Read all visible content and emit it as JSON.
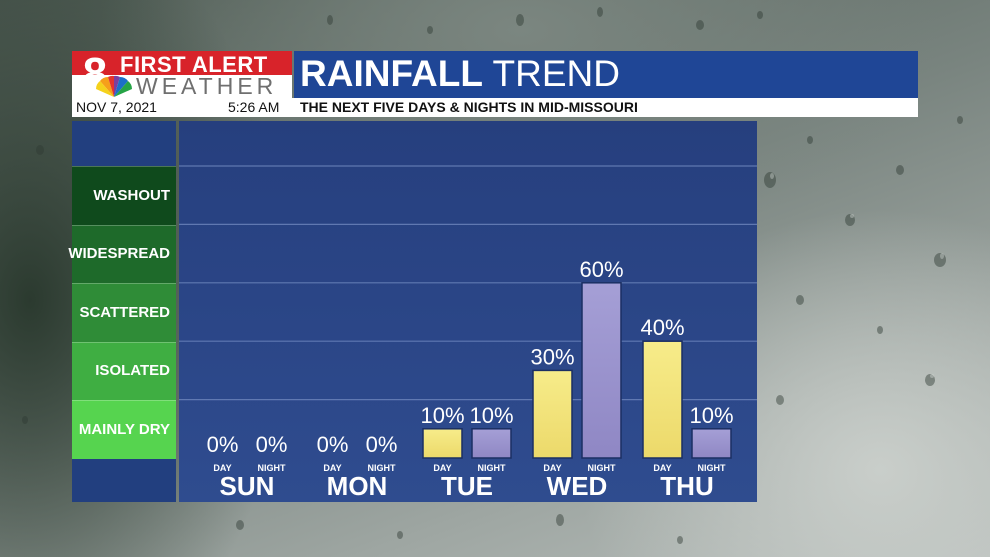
{
  "header": {
    "logo_number": "8",
    "logo_top": "FIRST ALERT",
    "logo_bottom": "WEATHER",
    "title_bold": "RAINFALL",
    "title_rest": " TREND",
    "date": "NOV 7, 2021",
    "time": "5:26 AM",
    "subtitle": "THE NEXT FIVE DAYS & NIGHTS IN MID-MISSOURI"
  },
  "scale_categories": [
    {
      "label": "WASHOUT",
      "color": "#0f4a1c"
    },
    {
      "label": "WIDESPREAD",
      "color": "#1e6a2a"
    },
    {
      "label": "SCATTERED",
      "color": "#2f8c37"
    },
    {
      "label": "ISOLATED",
      "color": "#3fae42"
    },
    {
      "label": "MAINLY DRY",
      "color": "#56d44f"
    }
  ],
  "colors": {
    "day_bar": "#ecd96a",
    "night_bar": "#8f87c4",
    "plot_bg": "#2a4586",
    "gridline": "#6e86bd"
  },
  "chart_data": {
    "type": "bar",
    "title": "RAINFALL TREND",
    "subtitle": "THE NEXT FIVE DAYS & NIGHTS IN MID-MISSOURI",
    "categories": [
      "SUN",
      "MON",
      "TUE",
      "WED",
      "THU"
    ],
    "series": [
      {
        "name": "DAY",
        "values": [
          0,
          0,
          10,
          30,
          40
        ]
      },
      {
        "name": "NIGHT",
        "values": [
          0,
          0,
          10,
          60,
          10
        ]
      }
    ],
    "value_labels": {
      "DAY": [
        "0%",
        "0%",
        "10%",
        "30%",
        "40%"
      ],
      "NIGHT": [
        "0%",
        "0%",
        "10%",
        "60%",
        "10%"
      ]
    },
    "ylim": [
      0,
      100
    ],
    "grid": true,
    "legend": "none"
  }
}
